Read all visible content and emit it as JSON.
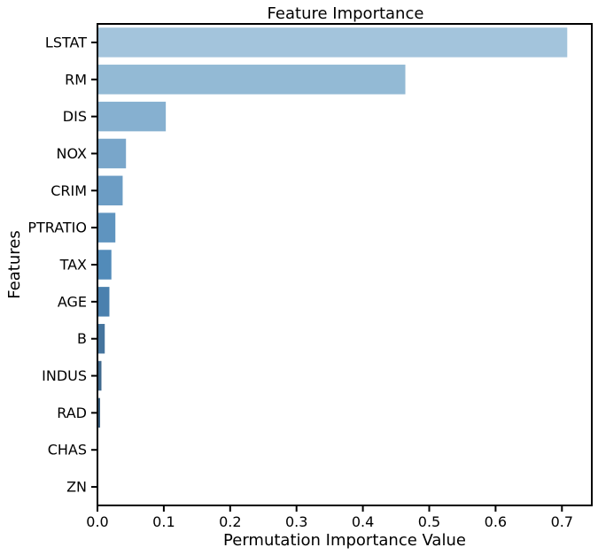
{
  "chart_data": {
    "type": "bar",
    "orientation": "horizontal",
    "title": "Feature Importance",
    "xlabel": "Permutation Importance Value",
    "ylabel": "Features",
    "xlim": [
      0,
      0.745
    ],
    "xticks": [
      0.0,
      0.1,
      0.2,
      0.3,
      0.4,
      0.5,
      0.6,
      0.7
    ],
    "xtick_labels": [
      "0.0",
      "0.1",
      "0.2",
      "0.3",
      "0.4",
      "0.5",
      "0.6",
      "0.7"
    ],
    "grid": false,
    "legend": "none",
    "categories": [
      "LSTAT",
      "RM",
      "DIS",
      "NOX",
      "CRIM",
      "PTRATIO",
      "TAX",
      "AGE",
      "B",
      "INDUS",
      "RAD",
      "CHAS",
      "ZN"
    ],
    "values": [
      0.708,
      0.464,
      0.103,
      0.043,
      0.038,
      0.027,
      0.021,
      0.018,
      0.011,
      0.006,
      0.004,
      0.001,
      0.0005
    ],
    "colors": [
      "#a3c4dc",
      "#93bad5",
      "#86b0d0",
      "#79a6ca",
      "#6c9dc5",
      "#5f94bf",
      "#528bb9",
      "#4a80ae",
      "#45749d",
      "#3f698d",
      "#395e7e",
      "#33536f",
      "#2d4862"
    ]
  }
}
